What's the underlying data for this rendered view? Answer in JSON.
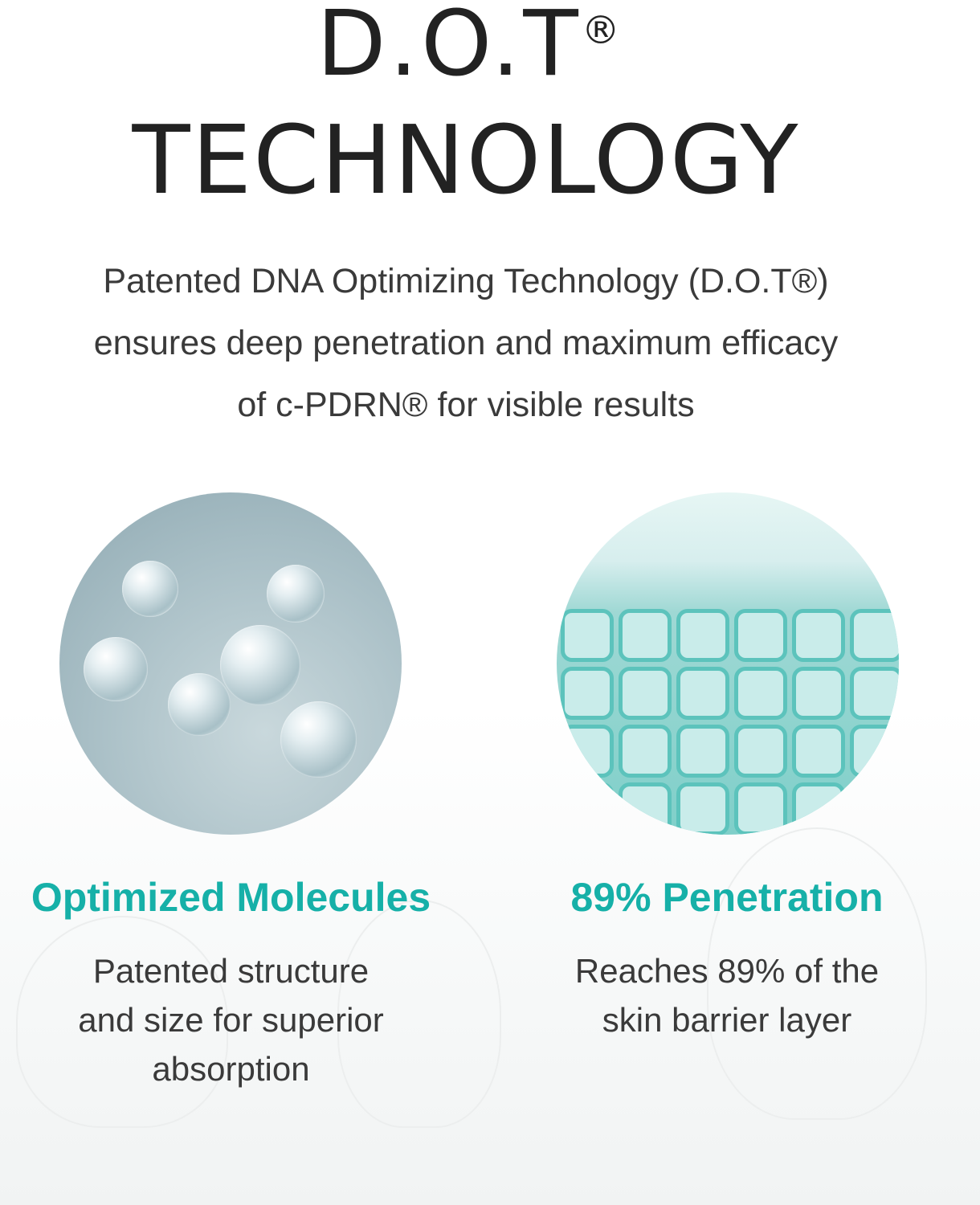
{
  "title": {
    "line1": "D.O.T",
    "registered": "®",
    "line2": "TECHNOLOGY"
  },
  "intro": {
    "line1": "Patented DNA Optimizing Technology (D.O.T®)",
    "line2": "ensures deep penetration and maximum efficacy",
    "line3": "of c-PDRN® for visible results"
  },
  "features": [
    {
      "heading": "Optimized Molecules",
      "lines": [
        "Patented structure",
        "and size for superior",
        "absorption"
      ],
      "image": "molecule-image"
    },
    {
      "heading": "89% Penetration",
      "lines": [
        "Reaches 89% of the",
        "skin barrier layer"
      ],
      "image": "skin-cells-image"
    }
  ],
  "colors": {
    "accent": "#16b0a8",
    "text": "#333333"
  }
}
